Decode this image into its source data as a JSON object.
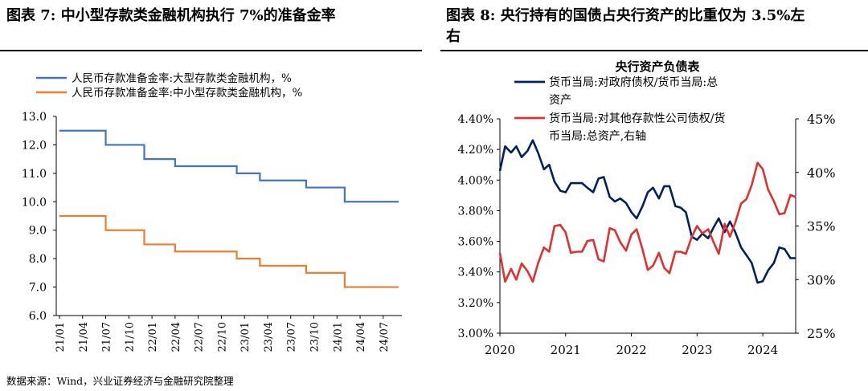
{
  "left": {
    "title": "图表 7:  中小型存款类金融机构执行 7%的准备金率"
  },
  "right": {
    "title_line1": "图表 8:  央行持有的国债占央行资产的比重仅为 3.5%左",
    "title_line2": "右"
  },
  "footer": "数据来源：Wind，兴业证券经济与金融研究院整理",
  "chart_data": [
    {
      "type": "line",
      "title": "",
      "ylim": [
        6.0,
        13.0
      ],
      "yticks": [
        "13.0",
        "12.0",
        "11.0",
        "10.0",
        "9.0",
        "8.0",
        "7.0",
        "6.0"
      ],
      "xticks": [
        "21/01",
        "21/04",
        "21/07",
        "21/10",
        "22/01",
        "22/04",
        "22/07",
        "22/10",
        "23/01",
        "23/04",
        "23/07",
        "23/10",
        "24/01",
        "24/04",
        "24/07"
      ],
      "legend_position": "top-left",
      "series": [
        {
          "name": "人民币存款准备金率:大型存款类金融机构，%",
          "color": "#4472C4",
          "steps": [
            {
              "from": "21/01",
              "value": 12.5
            },
            {
              "from": "21/07",
              "value": 12.0
            },
            {
              "from": "21/12",
              "value": 11.5
            },
            {
              "from": "22/04",
              "value": 11.25
            },
            {
              "from": "22/12",
              "value": 11.0
            },
            {
              "from": "23/03",
              "value": 10.75
            },
            {
              "from": "23/09",
              "value": 10.5
            },
            {
              "from": "24/02",
              "value": 10.0
            },
            {
              "from": "24/09",
              "value": 10.0
            }
          ]
        },
        {
          "name": "人民币存款准备金率:中小型存款类金融机构，%",
          "color": "#ED7D31",
          "steps": [
            {
              "from": "21/01",
              "value": 9.5
            },
            {
              "from": "21/07",
              "value": 9.0
            },
            {
              "from": "21/12",
              "value": 8.5
            },
            {
              "from": "22/04",
              "value": 8.25
            },
            {
              "from": "22/12",
              "value": 8.0
            },
            {
              "from": "23/03",
              "value": 7.75
            },
            {
              "from": "23/09",
              "value": 7.5
            },
            {
              "from": "24/02",
              "value": 7.0
            },
            {
              "from": "24/09",
              "value": 7.0
            }
          ]
        }
      ]
    },
    {
      "type": "line",
      "title": "央行资产负债表",
      "ylim": [
        3.0,
        4.4
      ],
      "y2lim": [
        25,
        45
      ],
      "yticks": [
        "4.40%",
        "4.20%",
        "4.00%",
        "3.80%",
        "3.60%",
        "3.40%",
        "3.20%",
        "3.00%"
      ],
      "y2ticks": [
        "45%",
        "40%",
        "35%",
        "30%",
        "25%"
      ],
      "xticks": [
        "2020",
        "2021",
        "2022",
        "2023",
        "2024"
      ],
      "legend_position": "top",
      "series": [
        {
          "name_line1": "货币当局:对政府债权/货币当局:总",
          "name_line2": "资产",
          "color": "#002060",
          "axis": "left",
          "x": [
            2020.0,
            2020.08,
            2020.17,
            2020.25,
            2020.33,
            2020.42,
            2020.5,
            2020.58,
            2020.67,
            2020.75,
            2020.83,
            2020.92,
            2021.0,
            2021.08,
            2021.17,
            2021.25,
            2021.33,
            2021.42,
            2021.5,
            2021.58,
            2021.67,
            2021.75,
            2021.83,
            2021.92,
            2022.0,
            2022.08,
            2022.17,
            2022.25,
            2022.33,
            2022.42,
            2022.5,
            2022.58,
            2022.67,
            2022.75,
            2022.83,
            2022.92,
            2023.0,
            2023.08,
            2023.17,
            2023.25,
            2023.33,
            2023.42,
            2023.5,
            2023.58,
            2023.67,
            2023.75,
            2023.83,
            2023.92,
            2024.0,
            2024.08,
            2024.17,
            2024.25,
            2024.33,
            2024.42,
            2024.5
          ],
          "values": [
            4.06,
            4.22,
            4.18,
            4.22,
            4.15,
            4.19,
            4.26,
            4.18,
            4.07,
            4.1,
            3.99,
            3.93,
            3.92,
            3.98,
            3.98,
            3.98,
            3.95,
            3.92,
            4.01,
            4.02,
            3.89,
            3.86,
            3.88,
            3.85,
            3.79,
            3.75,
            3.83,
            3.92,
            3.95,
            3.88,
            3.96,
            3.96,
            3.83,
            3.82,
            3.79,
            3.63,
            3.61,
            3.65,
            3.62,
            3.69,
            3.75,
            3.66,
            3.73,
            3.66,
            3.56,
            3.51,
            3.46,
            3.33,
            3.34,
            3.41,
            3.46,
            3.56,
            3.55,
            3.49,
            3.49
          ]
        },
        {
          "name_line1": "货币当局:对其他存款性公司债权/货",
          "name_line2": "币当局:总资产,右轴",
          "color": "#E03030",
          "axis": "right",
          "x": [
            2020.0,
            2020.08,
            2020.17,
            2020.25,
            2020.33,
            2020.42,
            2020.5,
            2020.58,
            2020.67,
            2020.75,
            2020.83,
            2020.92,
            2021.0,
            2021.08,
            2021.17,
            2021.25,
            2021.33,
            2021.42,
            2021.5,
            2021.58,
            2021.67,
            2021.75,
            2021.83,
            2021.92,
            2022.0,
            2022.08,
            2022.17,
            2022.25,
            2022.33,
            2022.42,
            2022.5,
            2022.58,
            2022.67,
            2022.75,
            2022.83,
            2022.92,
            2023.0,
            2023.08,
            2023.17,
            2023.25,
            2023.33,
            2023.42,
            2023.5,
            2023.58,
            2023.67,
            2023.75,
            2023.83,
            2023.92,
            2024.0,
            2024.08,
            2024.17,
            2024.25,
            2024.33,
            2024.42,
            2024.5
          ],
          "values": [
            32.5,
            29.8,
            31.0,
            30.0,
            31.5,
            30.8,
            29.8,
            31.5,
            33.0,
            32.6,
            35.0,
            35.1,
            34.4,
            32.5,
            32.6,
            32.6,
            33.6,
            33.7,
            31.9,
            31.7,
            34.8,
            34.6,
            33.5,
            32.7,
            34.2,
            34.7,
            32.8,
            30.9,
            31.3,
            32.5,
            31.1,
            30.6,
            32.6,
            32.6,
            32.4,
            34.0,
            35.0,
            34.3,
            34.7,
            33.5,
            32.4,
            35.2,
            34.0,
            35.3,
            37.1,
            37.5,
            38.8,
            40.9,
            40.3,
            38.4,
            37.3,
            36.1,
            36.2,
            37.9,
            37.7
          ]
        }
      ]
    }
  ]
}
